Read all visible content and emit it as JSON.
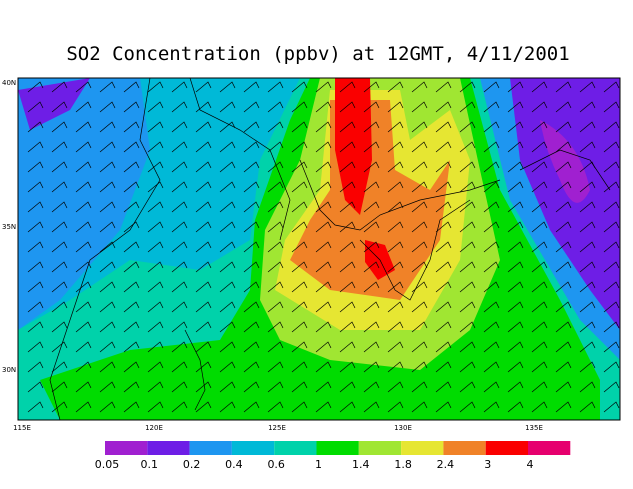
{
  "title": "SO2 Concentration (ppbv) at 12GMT, 4/11/2001",
  "lat_labels": [
    "40N",
    "35N",
    "30N"
  ],
  "lon_labels": [
    "115E",
    "120E",
    "125E",
    "130E",
    "135E"
  ],
  "colorbar": {
    "levels": [
      0.05,
      0.1,
      0.2,
      0.4,
      0.6,
      1,
      1.4,
      1.8,
      2.4,
      3,
      4
    ],
    "colors": [
      "#a020d0",
      "#6e1ee6",
      "#1e96f0",
      "#00b9d7",
      "#00d2aa",
      "#00dc00",
      "#a0e632",
      "#e6e632",
      "#f08228",
      "#fa0000",
      "#e6006e"
    ]
  }
}
